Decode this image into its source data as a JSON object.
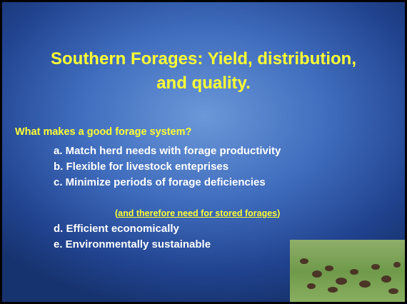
{
  "title_lines": [
    "Southern Forages: Yield, distribution,",
    "and quality."
  ],
  "question": "What makes a good forage system?",
  "items": [
    "a. Match herd needs with forage productivity",
    "b. Flexible for livestock enteprises",
    "c. Minimize periods of forage deficiencies"
  ],
  "note": {
    "prefix": "(",
    "text": "and therefore need for stored forages",
    "suffix": ")"
  },
  "items2": [
    "d.  Efficient economically",
    "e.  Environmentally sustainable"
  ]
}
